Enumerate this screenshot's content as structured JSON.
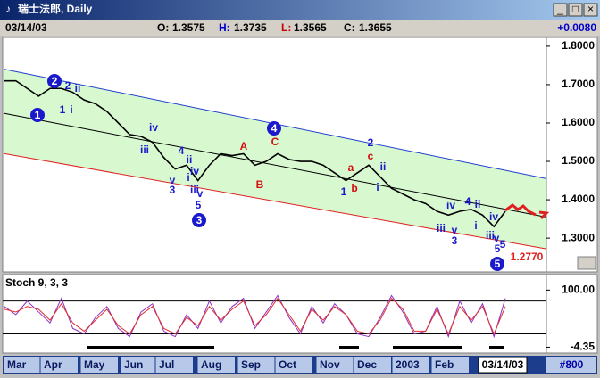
{
  "window": {
    "title": "瑞士法郎, Daily",
    "buttons": [
      "_",
      "□",
      "×"
    ]
  },
  "info": {
    "date": "03/14/03",
    "quotes": [
      {
        "label": "O:",
        "value": "1.3575",
        "color": "#000000"
      },
      {
        "label": "H:",
        "value": "1.3735",
        "color": "#0000cc"
      },
      {
        "label": "L:",
        "value": "1.3565",
        "color": "#cc0000"
      },
      {
        "label": "C:",
        "value": "1.3655",
        "color": "#000000"
      }
    ],
    "change": "+0.0080"
  },
  "chart_data": [
    {
      "type": "line",
      "ylim": [
        1.212,
        1.823
      ],
      "yticks": [
        {
          "value": 1.8,
          "label": "1.8000"
        },
        {
          "value": 1.7,
          "label": "1.7000"
        },
        {
          "value": 1.6,
          "label": "1.6000"
        },
        {
          "value": 1.5,
          "label": "1.5000"
        },
        {
          "value": 1.4,
          "label": "1.4000"
        },
        {
          "value": 1.3,
          "label": "1.3000"
        }
      ],
      "series": [
        {
          "color": "#000000",
          "values": [
            1.71,
            1.71,
            1.69,
            1.67,
            1.69,
            1.69,
            1.68,
            1.66,
            1.65,
            1.63,
            1.6,
            1.57,
            1.565,
            1.55,
            1.51,
            1.48,
            1.49,
            1.45,
            1.49,
            1.52,
            1.515,
            1.52,
            1.49,
            1.5,
            1.52,
            1.505,
            1.5,
            1.5,
            1.49,
            1.47,
            1.45,
            1.47,
            1.49,
            1.46,
            1.43,
            1.415,
            1.4,
            1.39,
            1.37,
            1.36,
            1.37,
            1.375,
            1.36,
            1.33,
            1.37
          ]
        }
      ],
      "channels": [
        {
          "color": "#2040d0",
          "values": [
            1.74,
            1.455
          ]
        },
        {
          "color": "#000000",
          "values": [
            1.625,
            1.355
          ]
        },
        {
          "color": "#e02020",
          "values": [
            1.52,
            1.272
          ]
        }
      ],
      "band_color": "#d8f8d0",
      "annotations": [
        {
          "text": "1",
          "color": "#1a1acc",
          "circled": true
        },
        {
          "text": "2",
          "color": "#1a1acc",
          "circled": true
        },
        {
          "text": "3",
          "color": "#1a1acc",
          "circled": true
        },
        {
          "text": "4",
          "color": "#1a1acc",
          "circled": true
        },
        {
          "text": "5",
          "color": "#1a1acc",
          "circled": true
        },
        {
          "text": "2",
          "color": "#1a1acc"
        },
        {
          "text": "ii",
          "color": "#1a1acc"
        },
        {
          "text": "1",
          "color": "#1a1acc"
        },
        {
          "text": "i",
          "color": "#1a1acc"
        },
        {
          "text": "iv",
          "color": "#1a1acc"
        },
        {
          "text": "iii",
          "color": "#1a1acc"
        },
        {
          "text": "4",
          "color": "#1a1acc"
        },
        {
          "text": "ii",
          "color": "#1a1acc"
        },
        {
          "text": "v",
          "color": "#1a1acc"
        },
        {
          "text": "3",
          "color": "#1a1acc"
        },
        {
          "text": "i",
          "color": "#1a1acc"
        },
        {
          "text": "iv",
          "color": "#1a1acc"
        },
        {
          "text": "iii",
          "color": "#1a1acc"
        },
        {
          "text": "v",
          "color": "#1a1acc"
        },
        {
          "text": "5",
          "color": "#1a1acc"
        },
        {
          "text": "A",
          "color": "#d01010"
        },
        {
          "text": "B",
          "color": "#d01010"
        },
        {
          "text": "C",
          "color": "#d01010"
        },
        {
          "text": "2",
          "color": "#1a1acc"
        },
        {
          "text": "c",
          "color": "#d01010"
        },
        {
          "text": "a",
          "color": "#d01010"
        },
        {
          "text": "ii",
          "color": "#1a1acc"
        },
        {
          "text": "b",
          "color": "#d01010"
        },
        {
          "text": "1",
          "color": "#1a1acc"
        },
        {
          "text": "i",
          "color": "#1a1acc"
        },
        {
          "text": "iv",
          "color": "#1a1acc"
        },
        {
          "text": "4",
          "color": "#1a1acc"
        },
        {
          "text": "ii",
          "color": "#1a1acc"
        },
        {
          "text": "v",
          "color": "#1a1acc"
        },
        {
          "text": "iii",
          "color": "#1a1acc"
        },
        {
          "text": "3",
          "color": "#1a1acc"
        },
        {
          "text": "i",
          "color": "#1a1acc"
        },
        {
          "text": "iv",
          "color": "#1a1acc"
        },
        {
          "text": "iii",
          "color": "#1a1acc"
        },
        {
          "text": "v",
          "color": "#1a1acc"
        },
        {
          "text": "5",
          "color": "#1a1acc"
        },
        {
          "text": "5",
          "color": "#1a1acc"
        },
        {
          "text": "1.2770",
          "color": "#e02020"
        }
      ]
    },
    {
      "type": "line",
      "title": "Stoch 9, 3, 3",
      "ylim": [
        -15,
        125
      ],
      "yticks": [
        {
          "value": 100,
          "label": "100.00"
        },
        {
          "value": -4.35,
          "label": "-4.35"
        }
      ],
      "levels": [
        80,
        20
      ],
      "series": [
        {
          "color": "#9030c0",
          "values": [
            70,
            55,
            80,
            60,
            40,
            85,
            30,
            20,
            50,
            70,
            30,
            15,
            60,
            75,
            25,
            15,
            55,
            30,
            80,
            40,
            70,
            85,
            30,
            60,
            90,
            50,
            20,
            70,
            40,
            75,
            55,
            20,
            15,
            50,
            90,
            60,
            20,
            25,
            70,
            15,
            80,
            40,
            75,
            15,
            85
          ]
        },
        {
          "color": "#e03030",
          "values": [
            65,
            60,
            70,
            65,
            45,
            75,
            40,
            25,
            45,
            65,
            35,
            20,
            55,
            70,
            30,
            20,
            50,
            35,
            70,
            45,
            65,
            80,
            35,
            55,
            85,
            55,
            25,
            65,
            45,
            70,
            55,
            25,
            20,
            45,
            85,
            65,
            25,
            25,
            65,
            20,
            70,
            45,
            70,
            20,
            70
          ]
        }
      ]
    }
  ],
  "time_axis": {
    "months": [
      "Mar",
      "Apr",
      "May",
      "Jun",
      "Jul",
      "Aug",
      "Sep",
      "Oct",
      "Nov",
      "Dec",
      "2003",
      "Feb"
    ],
    "current": "03/14/03",
    "bars": "#800"
  }
}
